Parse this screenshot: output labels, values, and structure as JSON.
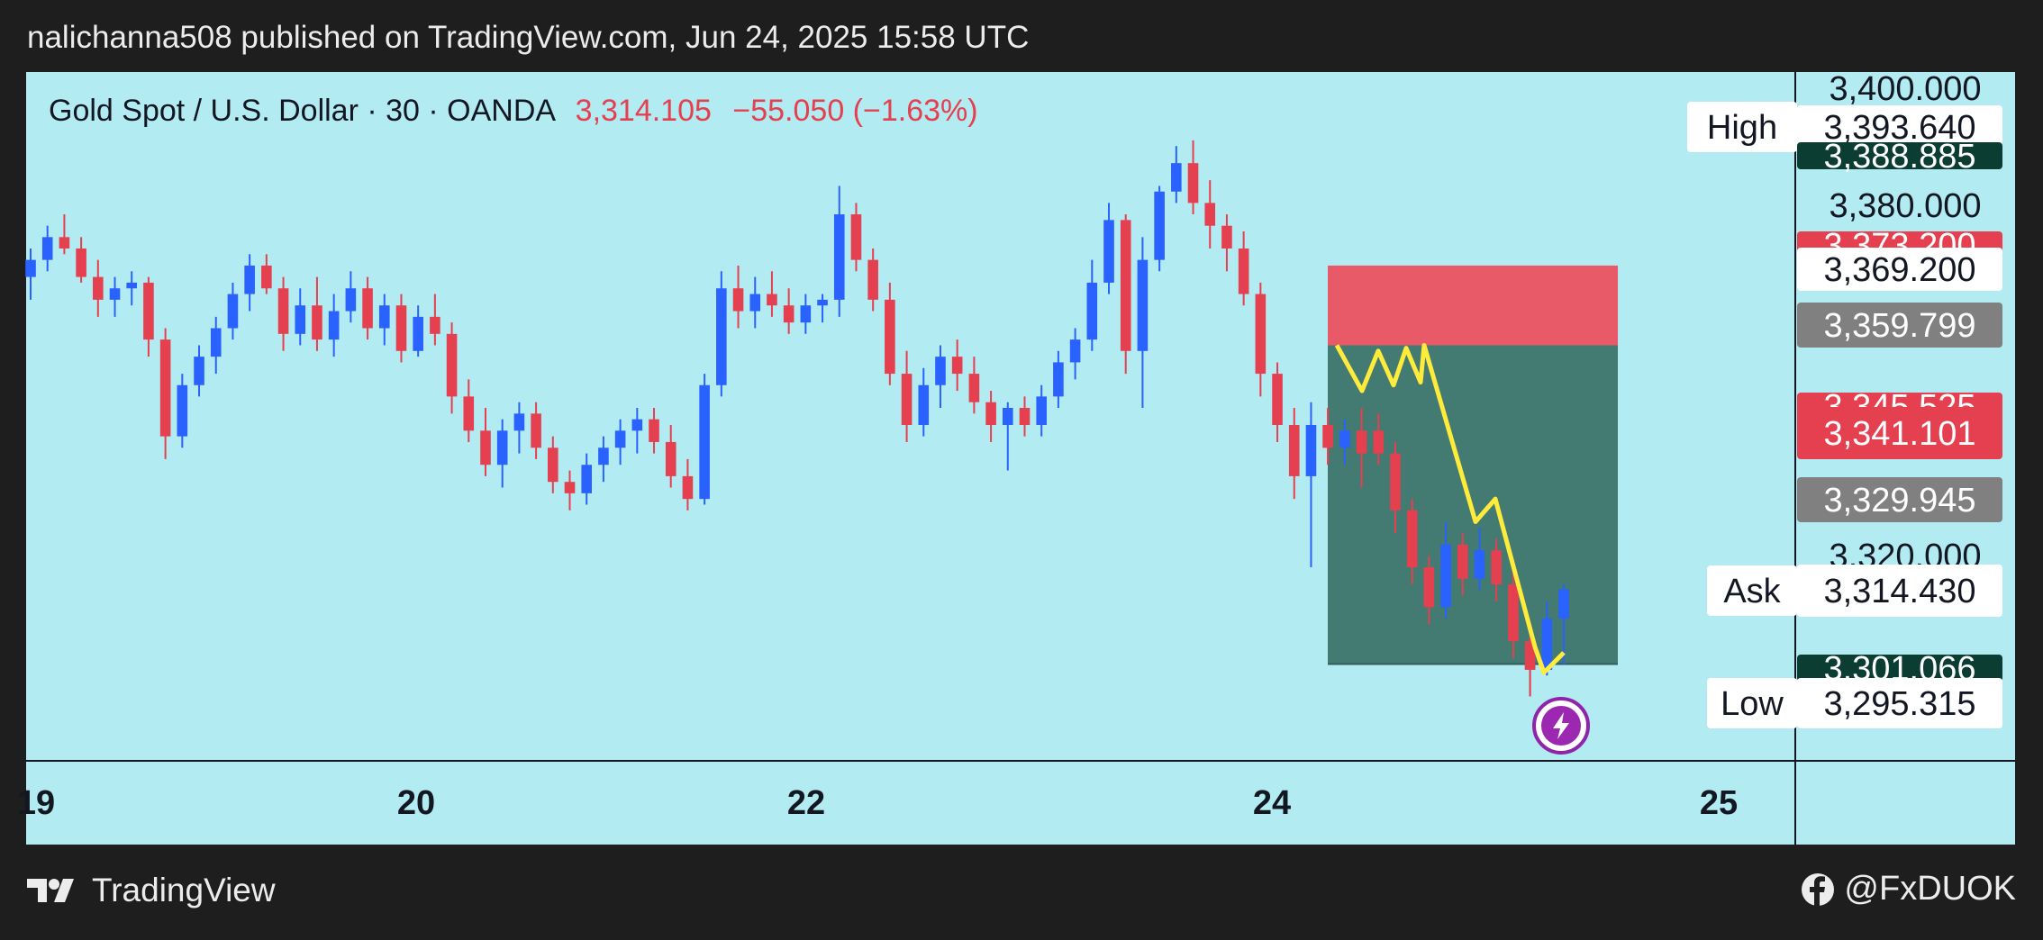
{
  "header": {
    "publish_line": "nalichanna508 published on TradingView.com, Jun 24, 2025 15:58 UTC"
  },
  "symbol": {
    "name": "Gold Spot / U.S. Dollar · 30 · OANDA",
    "price": "3,314.105",
    "change": "−55.050 (−1.63%)"
  },
  "chart_data": {
    "type": "candlestick",
    "ylim": [
      3284,
      3405
    ],
    "y_ticks": [
      "3,400.000",
      "3,380.000",
      "3,320.000"
    ],
    "x_ticks": [
      "19",
      "20",
      "22",
      "24",
      "25"
    ],
    "candles": [
      {
        "o": 3369,
        "h": 3374,
        "l": 3365,
        "c": 3372
      },
      {
        "o": 3372,
        "h": 3378,
        "l": 3370,
        "c": 3376
      },
      {
        "o": 3376,
        "h": 3380,
        "l": 3373,
        "c": 3374
      },
      {
        "o": 3374,
        "h": 3376,
        "l": 3368,
        "c": 3369
      },
      {
        "o": 3369,
        "h": 3372,
        "l": 3362,
        "c": 3365
      },
      {
        "o": 3365,
        "h": 3369,
        "l": 3362,
        "c": 3367
      },
      {
        "o": 3367,
        "h": 3370,
        "l": 3364,
        "c": 3368
      },
      {
        "o": 3368,
        "h": 3369,
        "l": 3355,
        "c": 3358
      },
      {
        "o": 3358,
        "h": 3360,
        "l": 3337,
        "c": 3341
      },
      {
        "o": 3341,
        "h": 3352,
        "l": 3339,
        "c": 3350
      },
      {
        "o": 3350,
        "h": 3357,
        "l": 3348,
        "c": 3355
      },
      {
        "o": 3355,
        "h": 3362,
        "l": 3352,
        "c": 3360
      },
      {
        "o": 3360,
        "h": 3368,
        "l": 3358,
        "c": 3366
      },
      {
        "o": 3366,
        "h": 3373,
        "l": 3363,
        "c": 3371
      },
      {
        "o": 3371,
        "h": 3373,
        "l": 3366,
        "c": 3367
      },
      {
        "o": 3367,
        "h": 3369,
        "l": 3356,
        "c": 3359
      },
      {
        "o": 3359,
        "h": 3367,
        "l": 3357,
        "c": 3364
      },
      {
        "o": 3364,
        "h": 3369,
        "l": 3356,
        "c": 3358
      },
      {
        "o": 3358,
        "h": 3366,
        "l": 3355,
        "c": 3363
      },
      {
        "o": 3363,
        "h": 3370,
        "l": 3361,
        "c": 3367
      },
      {
        "o": 3367,
        "h": 3369,
        "l": 3358,
        "c": 3360
      },
      {
        "o": 3360,
        "h": 3366,
        "l": 3357,
        "c": 3364
      },
      {
        "o": 3364,
        "h": 3366,
        "l": 3354,
        "c": 3356
      },
      {
        "o": 3356,
        "h": 3364,
        "l": 3355,
        "c": 3362
      },
      {
        "o": 3362,
        "h": 3366,
        "l": 3357,
        "c": 3359
      },
      {
        "o": 3359,
        "h": 3361,
        "l": 3345,
        "c": 3348
      },
      {
        "o": 3348,
        "h": 3351,
        "l": 3340,
        "c": 3342
      },
      {
        "o": 3342,
        "h": 3346,
        "l": 3334,
        "c": 3336
      },
      {
        "o": 3336,
        "h": 3344,
        "l": 3332,
        "c": 3342
      },
      {
        "o": 3342,
        "h": 3347,
        "l": 3338,
        "c": 3345
      },
      {
        "o": 3345,
        "h": 3347,
        "l": 3337,
        "c": 3339
      },
      {
        "o": 3339,
        "h": 3341,
        "l": 3331,
        "c": 3333
      },
      {
        "o": 3333,
        "h": 3335,
        "l": 3328,
        "c": 3331
      },
      {
        "o": 3331,
        "h": 3338,
        "l": 3329,
        "c": 3336
      },
      {
        "o": 3336,
        "h": 3341,
        "l": 3333,
        "c": 3339
      },
      {
        "o": 3339,
        "h": 3344,
        "l": 3336,
        "c": 3342
      },
      {
        "o": 3342,
        "h": 3346,
        "l": 3338,
        "c": 3344
      },
      {
        "o": 3344,
        "h": 3346,
        "l": 3338,
        "c": 3340
      },
      {
        "o": 3340,
        "h": 3343,
        "l": 3332,
        "c": 3334
      },
      {
        "o": 3334,
        "h": 3337,
        "l": 3328,
        "c": 3330
      },
      {
        "o": 3330,
        "h": 3352,
        "l": 3329,
        "c": 3350
      },
      {
        "o": 3350,
        "h": 3370,
        "l": 3348,
        "c": 3367
      },
      {
        "o": 3367,
        "h": 3371,
        "l": 3360,
        "c": 3363
      },
      {
        "o": 3363,
        "h": 3369,
        "l": 3360,
        "c": 3366
      },
      {
        "o": 3366,
        "h": 3370,
        "l": 3362,
        "c": 3364
      },
      {
        "o": 3364,
        "h": 3367,
        "l": 3359,
        "c": 3361
      },
      {
        "o": 3361,
        "h": 3366,
        "l": 3359,
        "c": 3364
      },
      {
        "o": 3364,
        "h": 3366,
        "l": 3361,
        "c": 3365
      },
      {
        "o": 3365,
        "h": 3385,
        "l": 3362,
        "c": 3380
      },
      {
        "o": 3380,
        "h": 3382,
        "l": 3370,
        "c": 3372
      },
      {
        "o": 3372,
        "h": 3374,
        "l": 3363,
        "c": 3365
      },
      {
        "o": 3365,
        "h": 3368,
        "l": 3350,
        "c": 3352
      },
      {
        "o": 3352,
        "h": 3356,
        "l": 3340,
        "c": 3343
      },
      {
        "o": 3343,
        "h": 3353,
        "l": 3341,
        "c": 3350
      },
      {
        "o": 3350,
        "h": 3357,
        "l": 3346,
        "c": 3355
      },
      {
        "o": 3355,
        "h": 3358,
        "l": 3349,
        "c": 3352
      },
      {
        "o": 3352,
        "h": 3355,
        "l": 3345,
        "c": 3347
      },
      {
        "o": 3347,
        "h": 3349,
        "l": 3340,
        "c": 3343
      },
      {
        "o": 3343,
        "h": 3347,
        "l": 3335,
        "c": 3346
      },
      {
        "o": 3346,
        "h": 3348,
        "l": 3341,
        "c": 3343
      },
      {
        "o": 3343,
        "h": 3350,
        "l": 3341,
        "c": 3348
      },
      {
        "o": 3348,
        "h": 3356,
        "l": 3346,
        "c": 3354
      },
      {
        "o": 3354,
        "h": 3360,
        "l": 3351,
        "c": 3358
      },
      {
        "o": 3358,
        "h": 3372,
        "l": 3356,
        "c": 3368
      },
      {
        "o": 3368,
        "h": 3382,
        "l": 3366,
        "c": 3379
      },
      {
        "o": 3379,
        "h": 3380,
        "l": 3352,
        "c": 3356
      },
      {
        "o": 3356,
        "h": 3376,
        "l": 3346,
        "c": 3372
      },
      {
        "o": 3372,
        "h": 3385,
        "l": 3370,
        "c": 3384
      },
      {
        "o": 3384,
        "h": 3392,
        "l": 3382,
        "c": 3389
      },
      {
        "o": 3389,
        "h": 3393,
        "l": 3380,
        "c": 3382
      },
      {
        "o": 3382,
        "h": 3386,
        "l": 3374,
        "c": 3378
      },
      {
        "o": 3378,
        "h": 3380,
        "l": 3370,
        "c": 3374
      },
      {
        "o": 3374,
        "h": 3377,
        "l": 3364,
        "c": 3366
      },
      {
        "o": 3366,
        "h": 3368,
        "l": 3348,
        "c": 3352
      },
      {
        "o": 3352,
        "h": 3354,
        "l": 3340,
        "c": 3343
      },
      {
        "o": 3343,
        "h": 3346,
        "l": 3330,
        "c": 3334
      },
      {
        "o": 3334,
        "h": 3347,
        "l": 3318,
        "c": 3343
      },
      {
        "o": 3343,
        "h": 3346,
        "l": 3336,
        "c": 3339
      },
      {
        "o": 3339,
        "h": 3344,
        "l": 3336,
        "c": 3342
      },
      {
        "o": 3342,
        "h": 3346,
        "l": 3332,
        "c": 3338
      },
      {
        "o": 3342,
        "h": 3345,
        "l": 3336,
        "c": 3338
      },
      {
        "o": 3338,
        "h": 3340,
        "l": 3324,
        "c": 3328
      },
      {
        "o": 3328,
        "h": 3330,
        "l": 3315,
        "c": 3318
      },
      {
        "o": 3318,
        "h": 3320,
        "l": 3308,
        "c": 3311
      },
      {
        "o": 3311,
        "h": 3326,
        "l": 3309,
        "c": 3322
      },
      {
        "o": 3322,
        "h": 3324,
        "l": 3313,
        "c": 3316
      },
      {
        "o": 3316,
        "h": 3325,
        "l": 3314,
        "c": 3321
      },
      {
        "o": 3321,
        "h": 3323,
        "l": 3312,
        "c": 3315
      },
      {
        "o": 3315,
        "h": 3318,
        "l": 3302,
        "c": 3305
      },
      {
        "o": 3305,
        "h": 3306,
        "l": 3295.3,
        "c": 3300
      },
      {
        "o": 3300,
        "h": 3312,
        "l": 3299,
        "c": 3309
      },
      {
        "o": 3309,
        "h": 3315,
        "l": 3301,
        "c": 3314.1
      }
    ],
    "position": {
      "entry": 3357.0,
      "stop": 3371.0,
      "target": 3301.0
    },
    "path": [
      3357.0,
      3349.0,
      3356.0,
      3350.0,
      3356.5,
      3350.5,
      3357.0,
      3326.0,
      3330.0,
      3304.0,
      3299.5,
      3303.0
    ],
    "labels": [
      {
        "name": "High",
        "value": "3,393.640",
        "style": "white"
      },
      {
        "value": "3,388.885",
        "style": "dark"
      },
      {
        "value": "3,373.200",
        "style": "red"
      },
      {
        "value": "3,369.200",
        "style": "white"
      },
      {
        "value": "3,359.799",
        "style": "gray"
      },
      {
        "value": "3,345.525",
        "style": "red"
      },
      {
        "value": "3,341.101",
        "style": "red"
      },
      {
        "value": "3,329.945",
        "style": "gray"
      },
      {
        "name": "Ask",
        "value": "3,314.430",
        "style": "white"
      },
      {
        "value": "3,301.066",
        "style": "dark"
      },
      {
        "name": "Low",
        "value": "3,295.315",
        "style": "white"
      }
    ],
    "colors": {
      "up": "#2962ff",
      "down": "#e5404f",
      "profit_zone": "#437a72",
      "loss_zone": "#e85a67",
      "path": "#ffeb3b",
      "background": "#b2ebf2"
    }
  },
  "footer": {
    "brand": "TradingView",
    "social_handle": "@FxDUOK"
  }
}
